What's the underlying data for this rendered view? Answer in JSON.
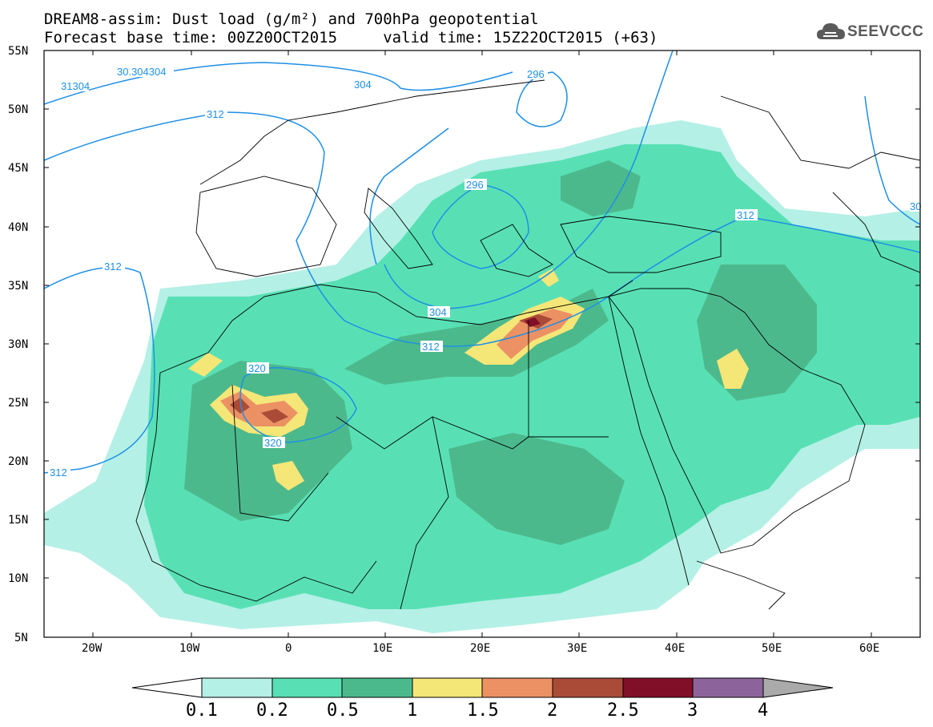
{
  "header": {
    "title_line1": "DREAM8-assim: Dust load (g/m²) and 700hPa geopotential",
    "title_line2": "Forecast base time: 00Z20OCT2015     valid time: 15Z22OCT2015 (+63)"
  },
  "logo": {
    "text": "SEEVCCC",
    "icon": "cloud-icon"
  },
  "map": {
    "lat_labels": [
      "55N",
      "50N",
      "45N",
      "40N",
      "35N",
      "30N",
      "25N",
      "20N",
      "15N",
      "10N",
      "5N"
    ],
    "lon_labels": [
      "20W",
      "10W",
      "0",
      "10E",
      "20E",
      "30E",
      "40E",
      "50E",
      "60E"
    ],
    "contour_labels": [
      "31304",
      "30.304304",
      "304",
      "296",
      "296",
      "312",
      "312",
      "312",
      "304",
      "312",
      "320",
      "320",
      "312",
      "30"
    ]
  },
  "colorbar": {
    "labels": [
      "0.1",
      "0.2",
      "0.5",
      "1",
      "1.5",
      "2",
      "2.5",
      "3",
      "4"
    ],
    "colors": [
      "#b4f0e6",
      "#58e0b4",
      "#4cb98c",
      "#f5e678",
      "#eb9164",
      "#aa4b37",
      "#820f28",
      "#8c649b"
    ],
    "under_color": "#ffffff",
    "over_color": "#aaaaaa"
  },
  "palette": {
    "contour": "#1e8fe6",
    "border": "#000000",
    "land_background": "#ffffff"
  }
}
